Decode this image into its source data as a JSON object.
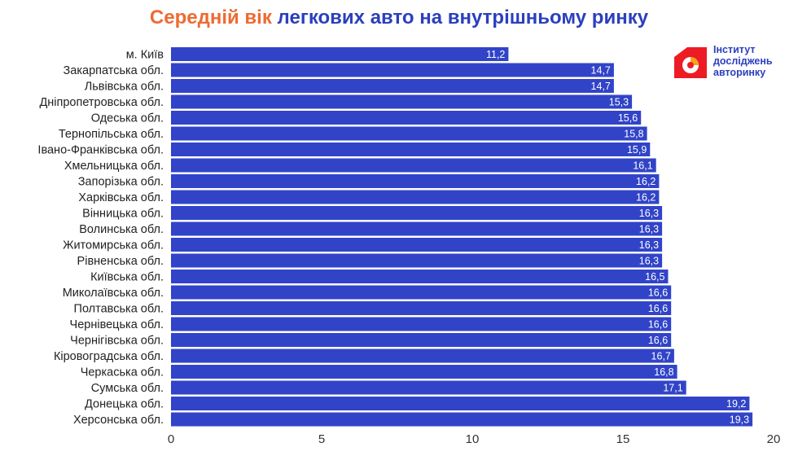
{
  "title": {
    "accent": "Середній вік",
    "rest": " легкових авто на внутрішньому ринку"
  },
  "logo": {
    "line1": "Інститут",
    "line2": "досліджень",
    "line3": "авторинку",
    "icon": "house-pie-icon",
    "colors": {
      "primary": "#ed1c24",
      "accent": "#f7a21b"
    }
  },
  "colors": {
    "bar": "#3144c8",
    "bar_edge": "#ffffff",
    "title_accent": "#ed6b32",
    "title_main": "#2b3fbe"
  },
  "chart_data": {
    "type": "bar",
    "orientation": "horizontal",
    "title": "Середній вік легкових авто на внутрішньому ринку",
    "xlabel": "",
    "ylabel": "",
    "xlim": [
      0,
      20
    ],
    "xticks": [
      0,
      5,
      10,
      15,
      20
    ],
    "grid": false,
    "categories": [
      "м. Київ",
      "Закарпатська обл.",
      "Львівська обл.",
      "Дніпропетровська обл.",
      "Одеська обл.",
      "Тернопільська обл.",
      "Івано-Франківська обл.",
      "Хмельницька обл.",
      "Запорізька обл.",
      "Харківська обл.",
      "Вінницька обл.",
      "Волинська обл.",
      "Житомирська обл.",
      "Рівненська обл.",
      "Київська обл.",
      "Миколаївська обл.",
      "Полтавська обл.",
      "Чернівецька обл.",
      "Чернігівська обл.",
      "Кіровоградська обл.",
      "Черкаська обл.",
      "Сумська обл.",
      "Донецька обл.",
      "Херсонська обл."
    ],
    "values": [
      11.2,
      14.7,
      14.7,
      15.3,
      15.6,
      15.8,
      15.9,
      16.1,
      16.2,
      16.2,
      16.3,
      16.3,
      16.3,
      16.3,
      16.5,
      16.6,
      16.6,
      16.6,
      16.6,
      16.7,
      16.8,
      17.1,
      19.2,
      19.3
    ],
    "value_labels": [
      "11,2",
      "14,7",
      "14,7",
      "15,3",
      "15,6",
      "15,8",
      "15,9",
      "16,1",
      "16,2",
      "16,2",
      "16,3",
      "16,3",
      "16,3",
      "16,3",
      "16,5",
      "16,6",
      "16,6",
      "16,6",
      "16,6",
      "16,7",
      "16,8",
      "17,1",
      "19,2",
      "19,3"
    ]
  }
}
